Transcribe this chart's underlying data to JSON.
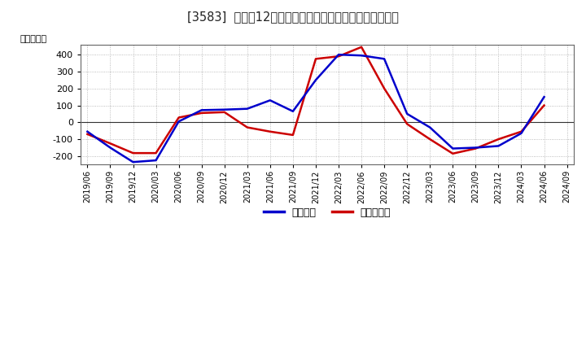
{
  "title": "[3583]  利益だ12か月移動合計の対前年同期増減額の推移",
  "ylabel": "（百万円）",
  "legend_labels": [
    "経常利益",
    "当期純利益"
  ],
  "line_colors": [
    "#0000cc",
    "#cc0000"
  ],
  "background_color": "#ffffff",
  "plot_bg_color": "#ffffff",
  "grid_color": "#aaaaaa",
  "ylim": [
    -250,
    460
  ],
  "yticks": [
    -200,
    -100,
    0,
    100,
    200,
    300,
    400
  ],
  "x_labels": [
    "2019/06",
    "2019/09",
    "2019/12",
    "2020/03",
    "2020/06",
    "2020/09",
    "2020/12",
    "2021/03",
    "2021/06",
    "2021/09",
    "2021/12",
    "2022/03",
    "2022/06",
    "2022/09",
    "2022/12",
    "2023/03",
    "2023/06",
    "2023/09",
    "2023/12",
    "2024/03",
    "2024/06",
    "2024/09"
  ],
  "operating_profit": [
    -55,
    -150,
    -235,
    -225,
    5,
    72,
    75,
    80,
    130,
    65,
    250,
    400,
    395,
    375,
    50,
    -30,
    -155,
    -150,
    -140,
    -65,
    150,
    null
  ],
  "net_profit": [
    -70,
    -125,
    -182,
    -182,
    28,
    55,
    60,
    -30,
    -55,
    -75,
    375,
    390,
    445,
    200,
    -10,
    -100,
    -185,
    -155,
    -100,
    -55,
    100,
    null
  ]
}
